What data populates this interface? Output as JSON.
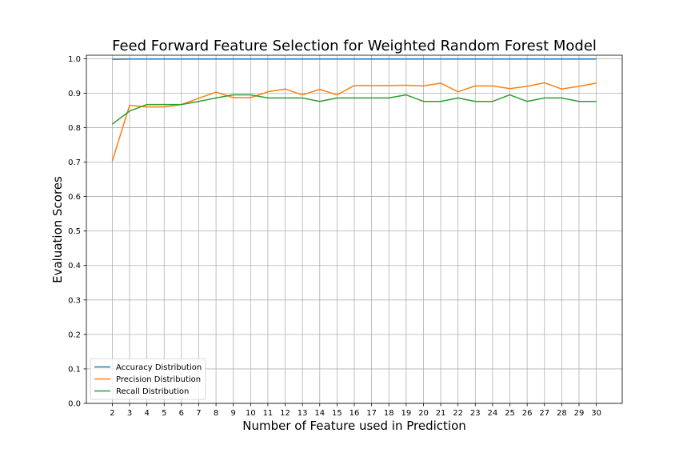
{
  "chart_data": {
    "type": "line",
    "title": "Feed Forward Feature Selection for Weighted Random Forest Model",
    "xlabel": "Number of Feature used in Prediction",
    "ylabel": "Evaluation Scores",
    "x": [
      2,
      3,
      4,
      5,
      6,
      7,
      8,
      9,
      10,
      11,
      12,
      13,
      14,
      15,
      16,
      17,
      18,
      19,
      20,
      21,
      22,
      23,
      24,
      25,
      26,
      27,
      28,
      29,
      30
    ],
    "xlim": [
      0.5,
      31.5
    ],
    "ylim": [
      0.0,
      1.01
    ],
    "yticks": [
      0.0,
      0.1,
      0.2,
      0.3,
      0.4,
      0.5,
      0.6,
      0.7,
      0.8,
      0.9,
      1.0
    ],
    "ytick_labels": [
      "0.0",
      "0.1",
      "0.2",
      "0.3",
      "0.4",
      "0.5",
      "0.6",
      "0.7",
      "0.8",
      "0.9",
      "1.0"
    ],
    "grid": true,
    "legend_position": "lower-left",
    "series": [
      {
        "name": "Accuracy Distribution",
        "color": "#1f77b4",
        "values": [
          0.998,
          0.999,
          0.999,
          0.999,
          0.999,
          0.999,
          0.999,
          0.999,
          0.999,
          0.999,
          0.999,
          0.999,
          0.999,
          0.999,
          0.999,
          0.999,
          0.999,
          0.999,
          0.999,
          0.999,
          0.999,
          0.999,
          0.999,
          0.999,
          0.999,
          0.999,
          0.999,
          0.999,
          0.999
        ]
      },
      {
        "name": "Precision Distribution",
        "color": "#ff7f0e",
        "values": [
          0.703,
          0.865,
          0.86,
          0.86,
          0.867,
          0.885,
          0.903,
          0.887,
          0.887,
          0.904,
          0.912,
          0.895,
          0.911,
          0.895,
          0.922,
          0.922,
          0.922,
          0.923,
          0.921,
          0.929,
          0.904,
          0.921,
          0.921,
          0.913,
          0.92,
          0.93,
          0.912,
          0.92,
          0.929
        ]
      },
      {
        "name": "Recall Distribution",
        "color": "#2ca02c",
        "values": [
          0.81,
          0.848,
          0.867,
          0.867,
          0.867,
          0.876,
          0.886,
          0.895,
          0.895,
          0.886,
          0.886,
          0.886,
          0.876,
          0.886,
          0.886,
          0.886,
          0.886,
          0.895,
          0.876,
          0.876,
          0.886,
          0.876,
          0.876,
          0.895,
          0.876,
          0.886,
          0.886,
          0.876,
          0.876
        ]
      }
    ]
  }
}
